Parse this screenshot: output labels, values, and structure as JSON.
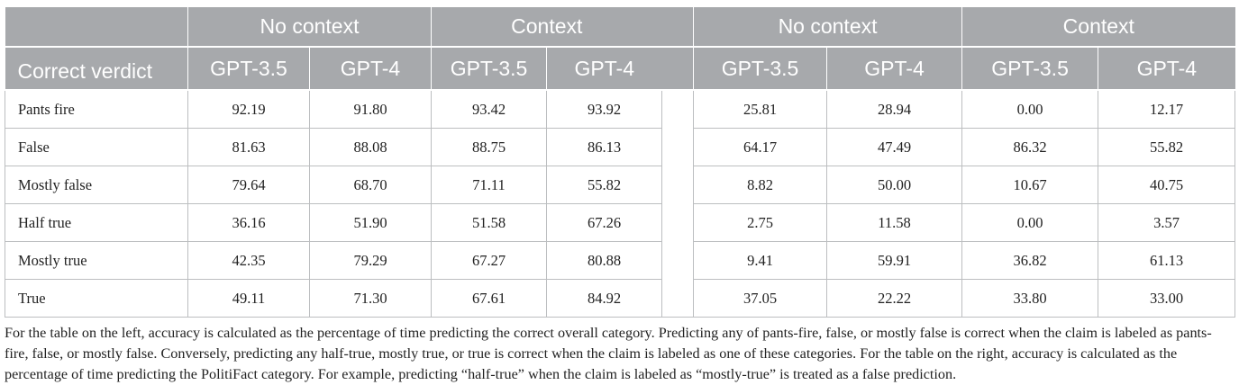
{
  "header": {
    "group_left_1": "No context",
    "group_left_2": "Context",
    "group_right_1": "No context",
    "group_right_2": "Context",
    "row_header": "Correct verdict",
    "model_a": "GPT-3.5",
    "model_b": "GPT-4"
  },
  "rows": [
    {
      "label": "Pants fire",
      "values": [
        "92.19",
        "91.80",
        "93.42",
        "93.92",
        "25.81",
        "28.94",
        "0.00",
        "12.17"
      ]
    },
    {
      "label": "False",
      "values": [
        "81.63",
        "88.08",
        "88.75",
        "86.13",
        "64.17",
        "47.49",
        "86.32",
        "55.82"
      ]
    },
    {
      "label": "Mostly false",
      "values": [
        "79.64",
        "68.70",
        "71.11",
        "55.82",
        "8.82",
        "50.00",
        "10.67",
        "40.75"
      ]
    },
    {
      "label": "Half true",
      "values": [
        "36.16",
        "51.90",
        "51.58",
        "67.26",
        "2.75",
        "11.58",
        "0.00",
        "3.57"
      ]
    },
    {
      "label": "Mostly true",
      "values": [
        "42.35",
        "79.29",
        "67.27",
        "80.88",
        "9.41",
        "59.91",
        "36.82",
        "61.13"
      ]
    },
    {
      "label": "True",
      "values": [
        "49.11",
        "71.30",
        "67.61",
        "84.92",
        "37.05",
        "22.22",
        "33.80",
        "33.00"
      ]
    }
  ],
  "footnote": "For the table on the left, accuracy is calculated as the percentage of time predicting the correct overall category. Predicting any of pants-fire, false, or mostly false is correct when the claim is labeled as pants-fire, false, or mostly false. Conversely, predicting any half-true, mostly true, or true is correct when the claim is labeled as one of these categories. For the table on the right, accuracy is calculated as the percentage of time predicting the PolitiFact category. For example, predicting “half-true” when the claim is labeled as “mostly-true” is treated as a false prediction."
}
